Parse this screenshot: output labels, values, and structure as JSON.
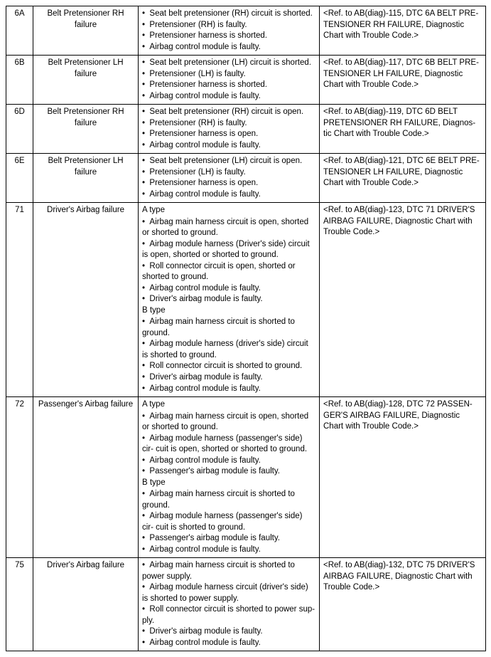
{
  "rows": [
    {
      "code": "6A",
      "name": "Belt Pretensioner RH failure",
      "details": {
        "sections": [
          {
            "bullets": [
              "Seat belt pretensioner (RH) circuit is shorted.",
              "Pretensioner (RH) is faulty.",
              "Pretensioner harness is shorted.",
              "Airbag control module is faulty."
            ]
          }
        ]
      },
      "ref": "<Ref. to AB(diag)-115, DTC 6A BELT PRE- TENSIONER RH FAILURE, Diagnostic Chart with Trouble Code.>"
    },
    {
      "code": "6B",
      "name": "Belt Pretensioner LH failure",
      "details": {
        "sections": [
          {
            "bullets": [
              "Seat belt pretensioner (LH) circuit is shorted.",
              "Pretensioner (LH) is faulty.",
              "Pretensioner harness is shorted.",
              "Airbag control module is faulty."
            ]
          }
        ]
      },
      "ref": "<Ref. to AB(diag)-117, DTC 6B BELT PRE- TENSIONER LH FAILURE, Diagnostic Chart with Trouble Code.>"
    },
    {
      "code": "6D",
      "name": "Belt Pretensioner RH failure",
      "details": {
        "sections": [
          {
            "bullets": [
              "Seat belt pretensioner (RH) circuit is open.",
              "Pretensioner (RH) is faulty.",
              "Pretensioner harness is open.",
              "Airbag control module is faulty."
            ]
          }
        ]
      },
      "ref": "<Ref. to AB(diag)-119, DTC 6D BELT PRETENSIONER RH FAILURE, Diagnos- tic Chart with Trouble Code.>"
    },
    {
      "code": "6E",
      "name": "Belt Pretensioner LH failure",
      "details": {
        "sections": [
          {
            "bullets": [
              "Seat belt pretensioner (LH) circuit is open.",
              "Pretensioner (LH) is faulty.",
              "Pretensioner harness is open.",
              "Airbag control module is faulty."
            ]
          }
        ]
      },
      "ref": "<Ref. to AB(diag)-121, DTC 6E BELT PRE- TENSIONER LH FAILURE, Diagnostic Chart with Trouble Code.>"
    },
    {
      "code": "71",
      "name": "Driver's Airbag failure",
      "details": {
        "sections": [
          {
            "heading": "A type",
            "bullets": [
              "Airbag main harness circuit is open, shorted or shorted to ground.",
              "Airbag module harness (Driver's side) circuit is open, shorted or shorted to ground.",
              "Roll connector circuit is open, shorted or shorted to ground.",
              "Airbag control module is faulty.",
              "Driver's airbag module is faulty."
            ]
          },
          {
            "heading": "B type",
            "bullets": [
              "Airbag main harness circuit is shorted to ground.",
              "Airbag module harness (driver's side) circuit is shorted to ground.",
              "Roll connector circuit is shorted to ground.",
              "Driver's airbag module is faulty.",
              "Airbag control module is faulty."
            ]
          }
        ]
      },
      "ref": "<Ref. to AB(diag)-123, DTC 71 DRIVER'S AIRBAG FAILURE, Diagnostic Chart with Trouble Code.>"
    },
    {
      "code": "72",
      "name": "Passenger's Airbag failure",
      "details": {
        "sections": [
          {
            "heading": "A type",
            "bullets": [
              "Airbag main harness circuit is open, shorted or shorted to ground.",
              "Airbag module harness (passenger's side) cir- cuit is open, shorted or shorted to ground.",
              "Airbag control module is faulty.",
              "Passenger's airbag module is faulty."
            ]
          },
          {
            "heading": "B type",
            "bullets": [
              "Airbag main harness circuit is shorted to ground.",
              "Airbag module harness (passenger's side) cir- cuit is shorted to ground.",
              "Passenger's airbag module is faulty.",
              "Airbag control module is faulty."
            ]
          }
        ]
      },
      "ref": "<Ref. to AB(diag)-128, DTC 72 PASSEN- GER'S AIRBAG FAILURE, Diagnostic Chart with Trouble Code.>"
    },
    {
      "code": "75",
      "name": "Driver's Airbag failure",
      "details": {
        "sections": [
          {
            "bullets": [
              "Airbag main harness circuit is shorted to power supply.",
              "Airbag module harness circuit (driver's side) is shorted to power supply.",
              "Roll connector circuit is shorted to power sup- ply.",
              "Driver's airbag module is faulty.",
              "Airbag control module is faulty."
            ]
          }
        ]
      },
      "ref": "<Ref. to AB(diag)-132, DTC 75 DRIVER'S AIRBAG FAILURE, Diagnostic Chart with Trouble Code.>"
    }
  ]
}
